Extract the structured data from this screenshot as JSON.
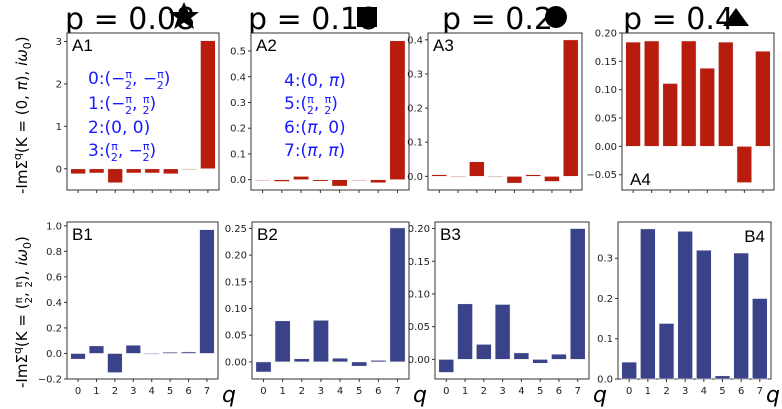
{
  "chart_data": {
    "type": "bar",
    "categories": [
      "0",
      "1",
      "2",
      "3",
      "4",
      "5",
      "6",
      "7"
    ],
    "xlabel": "q",
    "row_ylabels": [
      "-ImΣ^q(K=(0,π), iω0)",
      "-ImΣ^q(K=(π/2,π/2), iω0)"
    ],
    "legend_mapping": [
      "0:(-π/2, -π/2)",
      "1:(-π/2, π/2)",
      "2:(0, 0)",
      "3:(π/2, -π/2)",
      "4:(0, π)",
      "5:(π/2, π/2)",
      "6:(π, 0)",
      "7:(π, π)"
    ],
    "columns": [
      {
        "title": "p = 0.08",
        "marker": "star"
      },
      {
        "title": "p = 0.18",
        "marker": "square"
      },
      {
        "title": "p = 0.2",
        "marker": "circle"
      },
      {
        "title": "p = 0.4",
        "marker": "triangle"
      }
    ],
    "panels": [
      {
        "id": "A1",
        "row": 0,
        "col": 0,
        "color": "#b81c0c",
        "ylim": [
          -0.5,
          3.2
        ],
        "yticks": [
          0,
          1,
          2,
          3
        ],
        "tick_labels": [
          "0",
          "1",
          "2",
          "3"
        ],
        "values": [
          -0.12,
          -0.1,
          -0.33,
          -0.1,
          -0.1,
          -0.12,
          0.0,
          3.02
        ],
        "label_pos": "top-left",
        "show_xtick_labels": false
      },
      {
        "id": "A2",
        "row": 0,
        "col": 1,
        "color": "#b81c0c",
        "ylim": [
          -0.04,
          0.57
        ],
        "yticks": [
          0.0,
          0.1,
          0.2,
          0.3,
          0.4,
          0.5
        ],
        "tick_labels": [
          "0.0",
          "0.1",
          "0.2",
          "0.3",
          "0.4",
          "0.5"
        ],
        "values": [
          0.0,
          -0.007,
          0.013,
          -0.006,
          -0.025,
          0.0,
          -0.012,
          0.54
        ],
        "label_pos": "top-left",
        "show_xtick_labels": false
      },
      {
        "id": "A3",
        "row": 0,
        "col": 2,
        "color": "#b81c0c",
        "ylim": [
          -0.04,
          0.42
        ],
        "yticks": [
          0.0,
          0.1,
          0.2,
          0.3,
          0.4
        ],
        "tick_labels": [
          "0.0",
          "0.1",
          "0.2",
          "0.3",
          "0.4"
        ],
        "values": [
          0.005,
          -0.001,
          0.043,
          -0.001,
          -0.02,
          0.005,
          -0.015,
          0.4
        ],
        "label_pos": "top-left",
        "show_xtick_labels": false
      },
      {
        "id": "A4",
        "row": 0,
        "col": 3,
        "color": "#b81c0c",
        "ylim": [
          -0.077,
          0.2
        ],
        "yticks": [
          -0.05,
          0.0,
          0.05,
          0.1,
          0.15,
          0.2
        ],
        "tick_labels": [
          "−0.05",
          "0.00",
          "0.05",
          "0.10",
          "0.15",
          "0.20"
        ],
        "values": [
          0.184,
          0.186,
          0.111,
          0.186,
          0.138,
          0.184,
          -0.064,
          0.168
        ],
        "label_pos": "bottom-left",
        "show_xtick_labels": false
      },
      {
        "id": "B1",
        "row": 1,
        "col": 0,
        "color": "#3a4289",
        "ylim": [
          -0.2,
          1.03
        ],
        "yticks": [
          -0.2,
          0.0,
          0.2,
          0.4,
          0.6,
          0.8,
          1.0
        ],
        "tick_labels": [
          "−0.2",
          "0.0",
          "0.2",
          "0.4",
          "0.6",
          "0.8",
          "1.0"
        ],
        "values": [
          -0.045,
          0.06,
          -0.15,
          0.065,
          -0.007,
          0.01,
          0.012,
          0.97
        ],
        "label_pos": "top-left",
        "show_xtick_labels": true
      },
      {
        "id": "B2",
        "row": 1,
        "col": 1,
        "color": "#3a4289",
        "ylim": [
          -0.032,
          0.262
        ],
        "yticks": [
          0.0,
          0.05,
          0.1,
          0.15,
          0.2,
          0.25
        ],
        "tick_labels": [
          "0.00",
          "0.05",
          "0.10",
          "0.15",
          "0.20",
          "0.25"
        ],
        "values": [
          -0.019,
          0.077,
          0.006,
          0.078,
          0.007,
          -0.008,
          0.003,
          0.251
        ],
        "label_pos": "top-left",
        "show_xtick_labels": true
      },
      {
        "id": "B3",
        "row": 1,
        "col": 2,
        "color": "#3a4289",
        "ylim": [
          -0.03,
          0.21
        ],
        "yticks": [
          0.0,
          0.05,
          0.1,
          0.15,
          0.2
        ],
        "tick_labels": [
          "0.00",
          "0.05",
          "0.10",
          "0.15",
          "0.20"
        ],
        "values": [
          -0.02,
          0.085,
          0.023,
          0.084,
          0.01,
          -0.006,
          0.008,
          0.2
        ],
        "label_pos": "top-left",
        "show_xtick_labels": true
      },
      {
        "id": "B4",
        "row": 1,
        "col": 3,
        "color": "#3a4289",
        "ylim": [
          0.0,
          0.39
        ],
        "yticks": [
          0.0,
          0.1,
          0.2,
          0.3
        ],
        "tick_labels": [
          "0.0",
          "0.1",
          "0.2",
          "0.3"
        ],
        "values": [
          0.042,
          0.373,
          0.138,
          0.367,
          0.32,
          0.008,
          0.313,
          0.2
        ],
        "label_pos": "top-right",
        "show_xtick_labels": true
      }
    ]
  }
}
